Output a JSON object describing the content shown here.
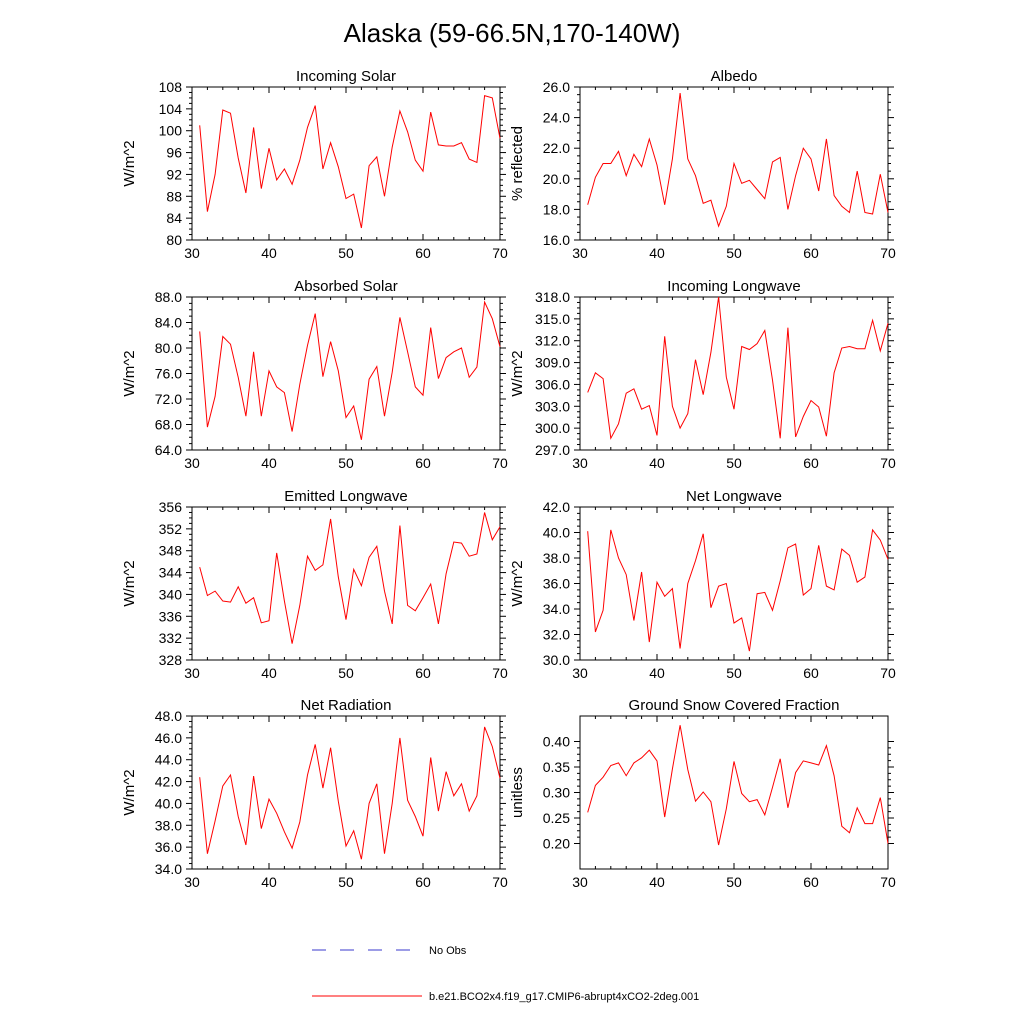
{
  "figure_title": "Alaska (59-66.5N,170-140W)",
  "legend": {
    "obs_label": "No Obs",
    "model_label": "b.e21.BCO2x4.f19_g17.CMIP6-abrupt4xCO2-2deg.001",
    "obs_color": "#3a3acc",
    "model_color": "#ff0000"
  },
  "chart_data": [
    {
      "type": "line",
      "title": "Incoming Solar",
      "xlabel": "",
      "ylabel": "W/m^2",
      "xlim": [
        30,
        70
      ],
      "ylim": [
        80,
        108
      ],
      "xticks": [
        30,
        40,
        50,
        60,
        70
      ],
      "xtick_labels": [
        "30",
        "40",
        "50",
        "60",
        "70"
      ],
      "yticks": [
        80,
        84,
        88,
        92,
        96,
        100,
        104,
        108
      ],
      "ytick_labels": [
        "80",
        "84",
        "88",
        "92",
        "96",
        "100",
        "104",
        "108"
      ],
      "x": [
        31,
        32,
        33,
        34,
        35,
        36,
        37,
        38,
        39,
        40,
        41,
        42,
        43,
        44,
        45,
        46,
        47,
        48,
        49,
        50,
        51,
        52,
        53,
        54,
        55,
        56,
        57,
        58,
        59,
        60,
        61,
        62,
        63,
        64,
        65,
        66,
        67,
        68,
        69,
        70
      ],
      "series": [
        {
          "name": "b.e21.BCO2x4.f19_g17.CMIP6-abrupt4xCO2-2deg.001",
          "values": [
            101.0,
            85.2,
            92.0,
            103.8,
            103.2,
            95.0,
            88.6,
            100.6,
            89.4,
            96.8,
            91.0,
            93.0,
            90.2,
            94.6,
            100.6,
            104.6,
            93.0,
            97.8,
            93.4,
            87.6,
            88.4,
            82.2,
            93.6,
            95.2,
            88.0,
            97.0,
            103.6,
            99.8,
            94.6,
            92.6,
            103.4,
            97.4,
            97.2,
            97.2,
            97.8,
            94.8,
            94.2,
            106.4,
            106.0,
            98.6
          ]
        }
      ]
    },
    {
      "type": "line",
      "title": "Albedo",
      "xlabel": "",
      "ylabel": "% reflected",
      "xlim": [
        30,
        70
      ],
      "ylim": [
        16,
        26
      ],
      "xticks": [
        30,
        40,
        50,
        60,
        70
      ],
      "xtick_labels": [
        "30",
        "40",
        "50",
        "60",
        "70"
      ],
      "yticks": [
        16,
        18,
        20,
        22,
        24,
        26
      ],
      "ytick_labels": [
        "16.0",
        "18.0",
        "20.0",
        "22.0",
        "24.0",
        "26.0"
      ],
      "x": [
        31,
        32,
        33,
        34,
        35,
        36,
        37,
        38,
        39,
        40,
        41,
        42,
        43,
        44,
        45,
        46,
        47,
        48,
        49,
        50,
        51,
        52,
        53,
        54,
        55,
        56,
        57,
        58,
        59,
        60,
        61,
        62,
        63,
        64,
        65,
        66,
        67,
        68,
        69,
        70
      ],
      "series": [
        {
          "name": "b.e21.BCO2x4.f19_g17.CMIP6-abrupt4xCO2-2deg.001",
          "values": [
            18.3,
            20.1,
            21.0,
            21.0,
            21.8,
            20.2,
            21.6,
            20.8,
            22.6,
            20.9,
            18.3,
            21.3,
            25.6,
            21.3,
            20.2,
            18.4,
            18.6,
            16.9,
            18.2,
            21.0,
            19.7,
            19.9,
            19.3,
            18.7,
            21.1,
            21.4,
            18.0,
            20.2,
            22.0,
            21.3,
            19.2,
            22.6,
            18.9,
            18.2,
            17.8,
            20.5,
            17.8,
            17.7,
            20.3,
            17.8
          ]
        }
      ]
    },
    {
      "type": "line",
      "title": "Absorbed Solar",
      "xlabel": "",
      "ylabel": "W/m^2",
      "xlim": [
        30,
        70
      ],
      "ylim": [
        64,
        88
      ],
      "xticks": [
        30,
        40,
        50,
        60,
        70
      ],
      "xtick_labels": [
        "30",
        "40",
        "50",
        "60",
        "70"
      ],
      "yticks": [
        64,
        68,
        72,
        76,
        80,
        84,
        88
      ],
      "ytick_labels": [
        "64.0",
        "68.0",
        "72.0",
        "76.0",
        "80.0",
        "84.0",
        "88.0"
      ],
      "x": [
        31,
        32,
        33,
        34,
        35,
        36,
        37,
        38,
        39,
        40,
        41,
        42,
        43,
        44,
        45,
        46,
        47,
        48,
        49,
        50,
        51,
        52,
        53,
        54,
        55,
        56,
        57,
        58,
        59,
        60,
        61,
        62,
        63,
        64,
        65,
        66,
        67,
        68,
        69,
        70
      ],
      "series": [
        {
          "name": "b.e21.BCO2x4.f19_g17.CMIP6-abrupt4xCO2-2deg.001",
          "values": [
            82.6,
            67.6,
            72.4,
            81.8,
            80.6,
            75.4,
            69.3,
            79.4,
            69.3,
            76.4,
            73.9,
            73.0,
            66.9,
            74.3,
            80.4,
            85.4,
            75.5,
            81.0,
            76.4,
            69.1,
            70.9,
            65.6,
            75.1,
            77.1,
            69.3,
            76.2,
            84.8,
            79.4,
            73.9,
            72.6,
            83.2,
            75.2,
            78.5,
            79.4,
            80.0,
            75.4,
            77.0,
            87.2,
            84.6,
            80.2
          ]
        }
      ]
    },
    {
      "type": "line",
      "title": "Incoming Longwave",
      "xlabel": "",
      "ylabel": "W/m^2",
      "xlim": [
        30,
        70
      ],
      "ylim": [
        297,
        318
      ],
      "xticks": [
        30,
        40,
        50,
        60,
        70
      ],
      "xtick_labels": [
        "30",
        "40",
        "50",
        "60",
        "70"
      ],
      "yticks": [
        297,
        300,
        303,
        306,
        309,
        312,
        315,
        318
      ],
      "ytick_labels": [
        "297.0",
        "300.0",
        "303.0",
        "306.0",
        "309.0",
        "312.0",
        "315.0",
        "318.0"
      ],
      "x": [
        31,
        32,
        33,
        34,
        35,
        36,
        37,
        38,
        39,
        40,
        41,
        42,
        43,
        44,
        45,
        46,
        47,
        48,
        49,
        50,
        51,
        52,
        53,
        54,
        55,
        56,
        57,
        58,
        59,
        60,
        61,
        62,
        63,
        64,
        65,
        66,
        67,
        68,
        69,
        70
      ],
      "series": [
        {
          "name": "b.e21.BCO2x4.f19_g17.CMIP6-abrupt4xCO2-2deg.001",
          "values": [
            304.9,
            307.6,
            306.8,
            298.6,
            300.6,
            304.8,
            305.4,
            302.6,
            303.1,
            299.0,
            312.6,
            303.0,
            300.0,
            302.0,
            309.4,
            304.6,
            310.4,
            318.0,
            307.0,
            302.6,
            311.2,
            310.8,
            311.6,
            313.4,
            306.6,
            298.6,
            313.8,
            298.8,
            301.6,
            303.8,
            302.9,
            298.9,
            307.6,
            311.0,
            311.2,
            310.9,
            310.9,
            314.8,
            310.6,
            314.4
          ]
        }
      ]
    },
    {
      "type": "line",
      "title": "Emitted Longwave",
      "xlabel": "",
      "ylabel": "W/m^2",
      "xlim": [
        30,
        70
      ],
      "ylim": [
        328,
        356
      ],
      "xticks": [
        30,
        40,
        50,
        60,
        70
      ],
      "xtick_labels": [
        "30",
        "40",
        "50",
        "60",
        "70"
      ],
      "yticks": [
        328,
        332,
        336,
        340,
        344,
        348,
        352,
        356
      ],
      "ytick_labels": [
        "328",
        "332",
        "336",
        "340",
        "344",
        "348",
        "352",
        "356"
      ],
      "x": [
        31,
        32,
        33,
        34,
        35,
        36,
        37,
        38,
        39,
        40,
        41,
        42,
        43,
        44,
        45,
        46,
        47,
        48,
        49,
        50,
        51,
        52,
        53,
        54,
        55,
        56,
        57,
        58,
        59,
        60,
        61,
        62,
        63,
        64,
        65,
        66,
        67,
        68,
        69,
        70
      ],
      "series": [
        {
          "name": "b.e21.BCO2x4.f19_g17.CMIP6-abrupt4xCO2-2deg.001",
          "values": [
            345.0,
            339.8,
            340.6,
            338.8,
            338.6,
            341.4,
            338.4,
            339.4,
            334.8,
            335.2,
            347.6,
            338.8,
            331.0,
            338.0,
            347.0,
            344.4,
            345.4,
            353.8,
            343.2,
            335.4,
            344.6,
            341.6,
            346.8,
            348.8,
            340.6,
            334.6,
            352.6,
            338.0,
            337.0,
            339.4,
            341.9,
            334.6,
            343.8,
            349.6,
            349.4,
            347.0,
            347.4,
            355.0,
            350.0,
            352.4
          ]
        }
      ]
    },
    {
      "type": "line",
      "title": "Net Longwave",
      "xlabel": "",
      "ylabel": "W/m^2",
      "xlim": [
        30,
        70
      ],
      "ylim": [
        30,
        42
      ],
      "xticks": [
        30,
        40,
        50,
        60,
        70
      ],
      "xtick_labels": [
        "30",
        "40",
        "50",
        "60",
        "70"
      ],
      "yticks": [
        30,
        32,
        34,
        36,
        38,
        40,
        42
      ],
      "ytick_labels": [
        "30.0",
        "32.0",
        "34.0",
        "36.0",
        "38.0",
        "40.0",
        "42.0"
      ],
      "x": [
        31,
        32,
        33,
        34,
        35,
        36,
        37,
        38,
        39,
        40,
        41,
        42,
        43,
        44,
        45,
        46,
        47,
        48,
        49,
        50,
        51,
        52,
        53,
        54,
        55,
        56,
        57,
        58,
        59,
        60,
        61,
        62,
        63,
        64,
        65,
        66,
        67,
        68,
        69,
        70
      ],
      "series": [
        {
          "name": "b.e21.BCO2x4.f19_g17.CMIP6-abrupt4xCO2-2deg.001",
          "values": [
            40.1,
            32.2,
            33.9,
            40.2,
            38.0,
            36.7,
            33.1,
            36.9,
            31.4,
            36.1,
            35.0,
            35.6,
            30.9,
            36.0,
            37.8,
            39.9,
            34.1,
            35.8,
            36.0,
            32.9,
            33.3,
            30.7,
            35.2,
            35.3,
            33.9,
            36.2,
            38.8,
            39.1,
            35.1,
            35.6,
            39.0,
            35.8,
            35.5,
            38.7,
            38.2,
            36.1,
            36.5,
            40.2,
            39.4,
            37.9
          ]
        }
      ]
    },
    {
      "type": "line",
      "title": "Net Radiation",
      "xlabel": "",
      "ylabel": "W/m^2",
      "xlim": [
        30,
        70
      ],
      "ylim": [
        34,
        48
      ],
      "xticks": [
        30,
        40,
        50,
        60,
        70
      ],
      "xtick_labels": [
        "30",
        "40",
        "50",
        "60",
        "70"
      ],
      "yticks": [
        34,
        36,
        38,
        40,
        42,
        44,
        46,
        48
      ],
      "ytick_labels": [
        "34.0",
        "36.0",
        "38.0",
        "40.0",
        "42.0",
        "44.0",
        "46.0",
        "48.0"
      ],
      "x": [
        31,
        32,
        33,
        34,
        35,
        36,
        37,
        38,
        39,
        40,
        41,
        42,
        43,
        44,
        45,
        46,
        47,
        48,
        49,
        50,
        51,
        52,
        53,
        54,
        55,
        56,
        57,
        58,
        59,
        60,
        61,
        62,
        63,
        64,
        65,
        66,
        67,
        68,
        69,
        70
      ],
      "series": [
        {
          "name": "b.e21.BCO2x4.f19_g17.CMIP6-abrupt4xCO2-2deg.001",
          "values": [
            42.4,
            35.4,
            38.4,
            41.6,
            42.6,
            38.8,
            36.2,
            42.5,
            37.7,
            40.4,
            39.1,
            37.4,
            35.9,
            38.3,
            42.6,
            45.4,
            41.4,
            45.1,
            40.2,
            36.1,
            37.5,
            34.9,
            40.0,
            41.8,
            35.4,
            40.0,
            46.0,
            40.3,
            38.8,
            37.0,
            44.2,
            39.3,
            42.9,
            40.7,
            41.8,
            39.3,
            40.7,
            47.0,
            45.2,
            42.3
          ]
        }
      ]
    },
    {
      "type": "line",
      "title": "Ground Snow Covered Fraction",
      "xlabel": "",
      "ylabel": "unitless",
      "xlim": [
        30,
        70
      ],
      "ylim": [
        0.15,
        0.45
      ],
      "xticks": [
        30,
        40,
        50,
        60,
        70
      ],
      "xtick_labels": [
        "30",
        "40",
        "50",
        "60",
        "70"
      ],
      "yticks": [
        0.2,
        0.25,
        0.3,
        0.35,
        0.4
      ],
      "ytick_labels": [
        "0.20",
        "0.25",
        "0.30",
        "0.35",
        "0.40"
      ],
      "x": [
        31,
        32,
        33,
        34,
        35,
        36,
        37,
        38,
        39,
        40,
        41,
        42,
        43,
        44,
        45,
        46,
        47,
        48,
        49,
        50,
        51,
        52,
        53,
        54,
        55,
        56,
        57,
        58,
        59,
        60,
        61,
        62,
        63,
        64,
        65,
        66,
        67,
        68,
        69,
        70
      ],
      "series": [
        {
          "name": "b.e21.BCO2x4.f19_g17.CMIP6-abrupt4xCO2-2deg.001",
          "values": [
            0.261,
            0.314,
            0.33,
            0.353,
            0.358,
            0.333,
            0.358,
            0.368,
            0.383,
            0.362,
            0.252,
            0.346,
            0.432,
            0.345,
            0.283,
            0.301,
            0.282,
            0.197,
            0.268,
            0.361,
            0.298,
            0.282,
            0.286,
            0.256,
            0.31,
            0.366,
            0.27,
            0.339,
            0.362,
            0.358,
            0.354,
            0.392,
            0.333,
            0.234,
            0.221,
            0.27,
            0.239,
            0.239,
            0.29,
            0.2
          ]
        }
      ]
    }
  ]
}
